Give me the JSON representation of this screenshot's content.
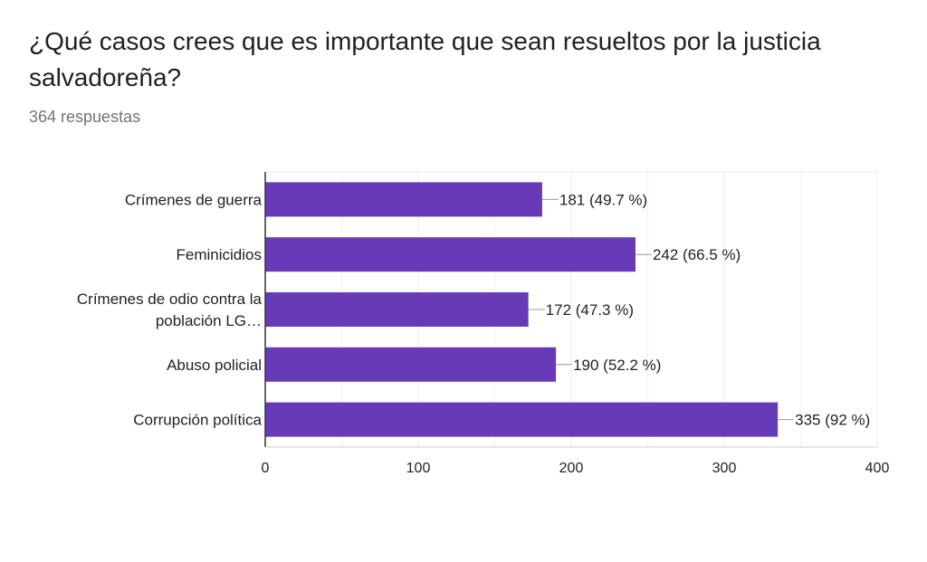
{
  "header": {
    "question": "¿Qué casos crees que es importante que sean resueltos por la justicia salvadoreña?",
    "responses": "364 respuestas"
  },
  "colors": {
    "bar": "#673ab7",
    "grid": "#ebebeb",
    "axis": "#333333",
    "leader": "#999999"
  },
  "chart_data": {
    "type": "bar",
    "orientation": "horizontal",
    "title": "¿Qué casos crees que es importante que sean resueltos por la justicia salvadoreña?",
    "categories": [
      [
        "Crímenes de guerra"
      ],
      [
        "Feminicidios"
      ],
      [
        "Crímenes de odio contra la",
        "población LG…"
      ],
      [
        "Abuso policial"
      ],
      [
        "Corrupción política"
      ]
    ],
    "values": [
      181,
      242,
      172,
      190,
      335
    ],
    "data_labels": [
      "181 (49.7 %)",
      "242 (66.5 %)",
      "172 (47.3 %)",
      "190 (52.2 %)",
      "335 (92 %)"
    ],
    "xlim": [
      0,
      400
    ],
    "xticks": [
      0,
      100,
      200,
      300,
      400
    ],
    "xlabel": "",
    "ylabel": "",
    "grid": true
  }
}
